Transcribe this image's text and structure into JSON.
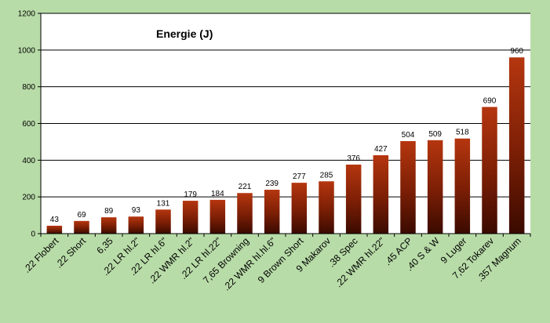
{
  "chart_data": {
    "type": "bar",
    "title": "Energie (J)",
    "xlabel": "",
    "ylabel": "",
    "ylim": [
      0,
      1200
    ],
    "yticks": [
      0,
      200,
      400,
      600,
      800,
      1000,
      1200
    ],
    "grid": true,
    "legend": "none",
    "colors": {
      "background": "#b8dca8",
      "plot_area": "#ffffff",
      "bar_top": "#b5360f",
      "bar_bottom": "#3a0a00",
      "grid": "#000000"
    },
    "categories": [
      ".22 Flobert",
      ".22 Short",
      "6,35",
      ".22 LR hl.2\"",
      ".22 LR hl.6\"",
      ".22 WMR hl.2\"",
      ".22 LR hl.22\"",
      "7,65 Browning",
      ".22 WMR hl.hl.6\"",
      "9 Brown Short",
      "9 Makarov",
      ".38 Spec",
      ".22 WMR hl.22\"",
      ".45 ACP",
      ".40 S & W",
      "9 Luger",
      "7,62 Tokarev",
      ".357 Magnum"
    ],
    "values": [
      43,
      69,
      89,
      93,
      131,
      179,
      184,
      221,
      239,
      277,
      285,
      376,
      427,
      504,
      509,
      518,
      690,
      960
    ]
  }
}
